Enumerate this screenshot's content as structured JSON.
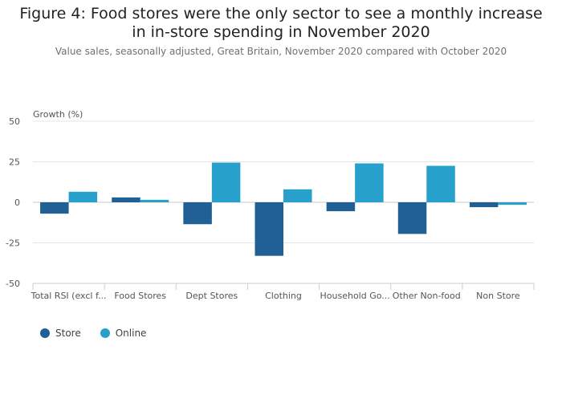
{
  "title": "Figure 4: Food stores were the only sector to see a monthly increase in in-store spending in November 2020",
  "subtitle": "Value sales, seasonally adjusted, Great Britain, November 2020 compared with October 2020",
  "chart_data": {
    "type": "bar",
    "ylabel": "Growth (%)",
    "ylim": [
      -50,
      50
    ],
    "yticks": [
      50,
      25,
      0,
      -25,
      -50
    ],
    "categories": [
      "Total RSI (excl f...",
      "Food Stores",
      "Dept Stores",
      "Clothing",
      "Household Go...",
      "Other Non-food",
      "Non Store"
    ],
    "series": [
      {
        "name": "Store",
        "color": "#206095",
        "values": [
          -7,
          3,
          -13.5,
          -33,
          -5.5,
          -19.5,
          -3
        ]
      },
      {
        "name": "Online",
        "color": "#27a0cc",
        "values": [
          6.5,
          1.5,
          24.5,
          8,
          24,
          22.5,
          -1.5
        ]
      }
    ],
    "grid": true,
    "legend_position": "bottom-left"
  }
}
